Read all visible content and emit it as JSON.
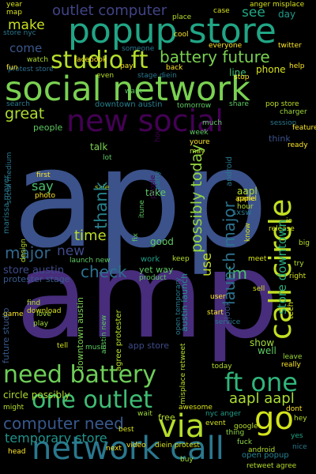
{
  "palette": {
    "background": "#000000",
    "purple": "#440154",
    "indigo": "#46327e",
    "blue": "#365c8d",
    "teal": "#277f8e",
    "green": "#1fa187",
    "lime": "#4ac16d",
    "yellow": "#a0da39",
    "bright": "#fde725"
  },
  "words": {
    "app": "app",
    "amp": "amp",
    "social_network": "social network",
    "popup_store": "popup store",
    "new_social": "new social",
    "call_circle": "call circle",
    "network_call": "network call",
    "need_battery": "need battery",
    "one_outlet": "one outlet",
    "studio_ft": "studio ft",
    "via": "via",
    "go": "go",
    "ft_one": "ft one",
    "launch_major": "launch major",
    "possibly_today": "possibly today",
    "battery_future": "battery future",
    "computer_need": "computer need",
    "temporary_store": "temporary store",
    "outlet_computer": "outlet computer",
    "make": "make",
    "see": "see",
    "come": "come",
    "great": "great",
    "thank": "thank",
    "time": "time",
    "major": "major",
    "new": "new",
    "check": "check",
    "use": "use",
    "im": "im",
    "aapl_aapl": "aapl aapl",
    "store_downtown": "store downtown",
    "downtown_austin": "downtown austin",
    "say": "say",
    "people": "people",
    "think": "think",
    "talk": "talk",
    "aapl": "aapl",
    "panel": "panel",
    "phone": "phone",
    "line": "line",
    "day": "day",
    "sxsw": "sxsw",
    "pop_store": "pop store",
    "store_austin": "store austin",
    "protester_stage": "protester stage",
    "future_studio": "future studio",
    "austin_launch": "austin launch",
    "android": "android",
    "app_store": "app store",
    "circle_possibly": "circle possibly",
    "look": "look",
    "show": "show",
    "well": "well",
    "yet_way": "yet way",
    "work": "work",
    "good": "good",
    "fix": "fix",
    "store_nyc": "store nyc",
    "watch": "watch",
    "facebook": "facebook",
    "protest_store": "protest store",
    "open_popup": "open popup",
    "retweet_agree": "retweet agree",
    "diein_protest": "diein protest",
    "google": "google",
    "video": "video",
    "nyc_anger": "nyc anger",
    "free": "free",
    "best": "best",
    "dont": "dont",
    "hey": "hey",
    "nice": "nice",
    "yes": "yes",
    "fuck": "fuck",
    "head": "head",
    "next": "next",
    "buy": "buy",
    "thing": "thing",
    "event": "event",
    "wait": "wait",
    "awesome": "awesome",
    "really": "really",
    "leave": "leave",
    "today": "today",
    "music": "music",
    "tell": "tell",
    "play": "play",
    "love": "love",
    "download": "download",
    "find": "find",
    "game": "game",
    "start": "start",
    "user": "user",
    "keep": "keep",
    "meet": "meet",
    "right": "right",
    "try": "try",
    "release": "release",
    "know": "know",
    "tech": "tech",
    "io": "io",
    "big": "big",
    "apple": "apple",
    "hour": "hour",
    "take": "take",
    "photo": "photo",
    "ready": "ready",
    "charger": "charger",
    "session": "session",
    "share": "share",
    "tomorrow": "tomorrow",
    "much": "much",
    "week": "week",
    "youre": "youre",
    "may": "may",
    "first": "first",
    "sale": "sale",
    "lot": "lot",
    "party": "party",
    "itune": "itune",
    "stage_diein": "stage diein",
    "back": "back",
    "pay": "pay",
    "even": "even",
    "stop": "stop",
    "fun": "fun",
    "help": "help",
    "everyone": "everyone",
    "twitter": "twitter",
    "place": "place",
    "cool": "cool",
    "case": "case",
    "anger_misplace": "anger misplace",
    "year": "year",
    "map": "map",
    "want": "want",
    "search": "search",
    "feature": "feature",
    "marissa_mayer": "marissa mayer",
    "social_medium": "social medium",
    "design": "design",
    "product": "product",
    "someone": "someone",
    "launch_new": "launch new",
    "sell": "sell",
    "service": "service",
    "might": "might",
    "misplace_retweet": "misplace retweet",
    "open_temporary": "open temporary",
    "agree_protester": "agree protester",
    "austin_new": "austin new"
  }
}
